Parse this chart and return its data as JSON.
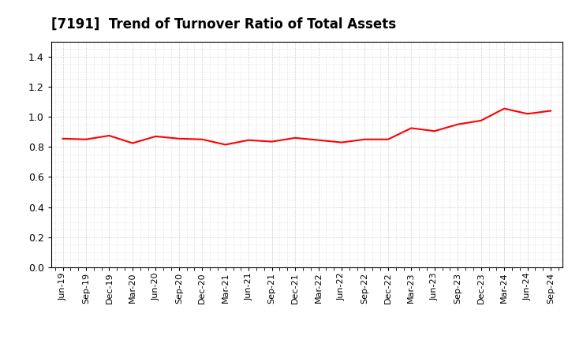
{
  "title": "[7191]  Trend of Turnover Ratio of Total Assets",
  "line_color": "#FF0000",
  "line_width": 1.5,
  "background_color": "#FFFFFF",
  "grid_color": "#999999",
  "ylim": [
    0.0,
    1.5
  ],
  "yticks": [
    0.0,
    0.2,
    0.4,
    0.6,
    0.8,
    1.0,
    1.2,
    1.4
  ],
  "x_labels": [
    "Jun-19",
    "Sep-19",
    "Dec-19",
    "Mar-20",
    "Jun-20",
    "Sep-20",
    "Dec-20",
    "Mar-21",
    "Jun-21",
    "Sep-21",
    "Dec-21",
    "Mar-22",
    "Jun-22",
    "Sep-22",
    "Dec-22",
    "Mar-23",
    "Jun-23",
    "Sep-23",
    "Dec-23",
    "Mar-24",
    "Jun-24",
    "Sep-24"
  ],
  "values": [
    0.855,
    0.85,
    0.875,
    0.825,
    0.87,
    0.855,
    0.85,
    0.815,
    0.845,
    0.835,
    0.86,
    0.845,
    0.83,
    0.85,
    0.85,
    0.925,
    0.905,
    0.95,
    0.975,
    1.055,
    1.02,
    1.04
  ],
  "title_fontsize": 12,
  "tick_fontsize": 8,
  "ytick_fontsize": 9
}
